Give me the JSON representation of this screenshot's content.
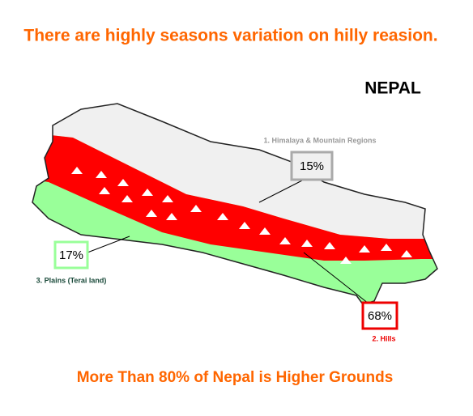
{
  "title": "There are highly seasons variation on hilly reasion.",
  "map_title": "NEPAL",
  "regions": [
    {
      "label": "1. Himalaya & Mountain Regions",
      "share": "15%"
    },
    {
      "label": "2. Hills",
      "share": "68%"
    },
    {
      "label": "3. Plains (Terai land)",
      "share": "17%"
    }
  ],
  "footer": "More Than 80% of Nepal is Higher Grounds"
}
